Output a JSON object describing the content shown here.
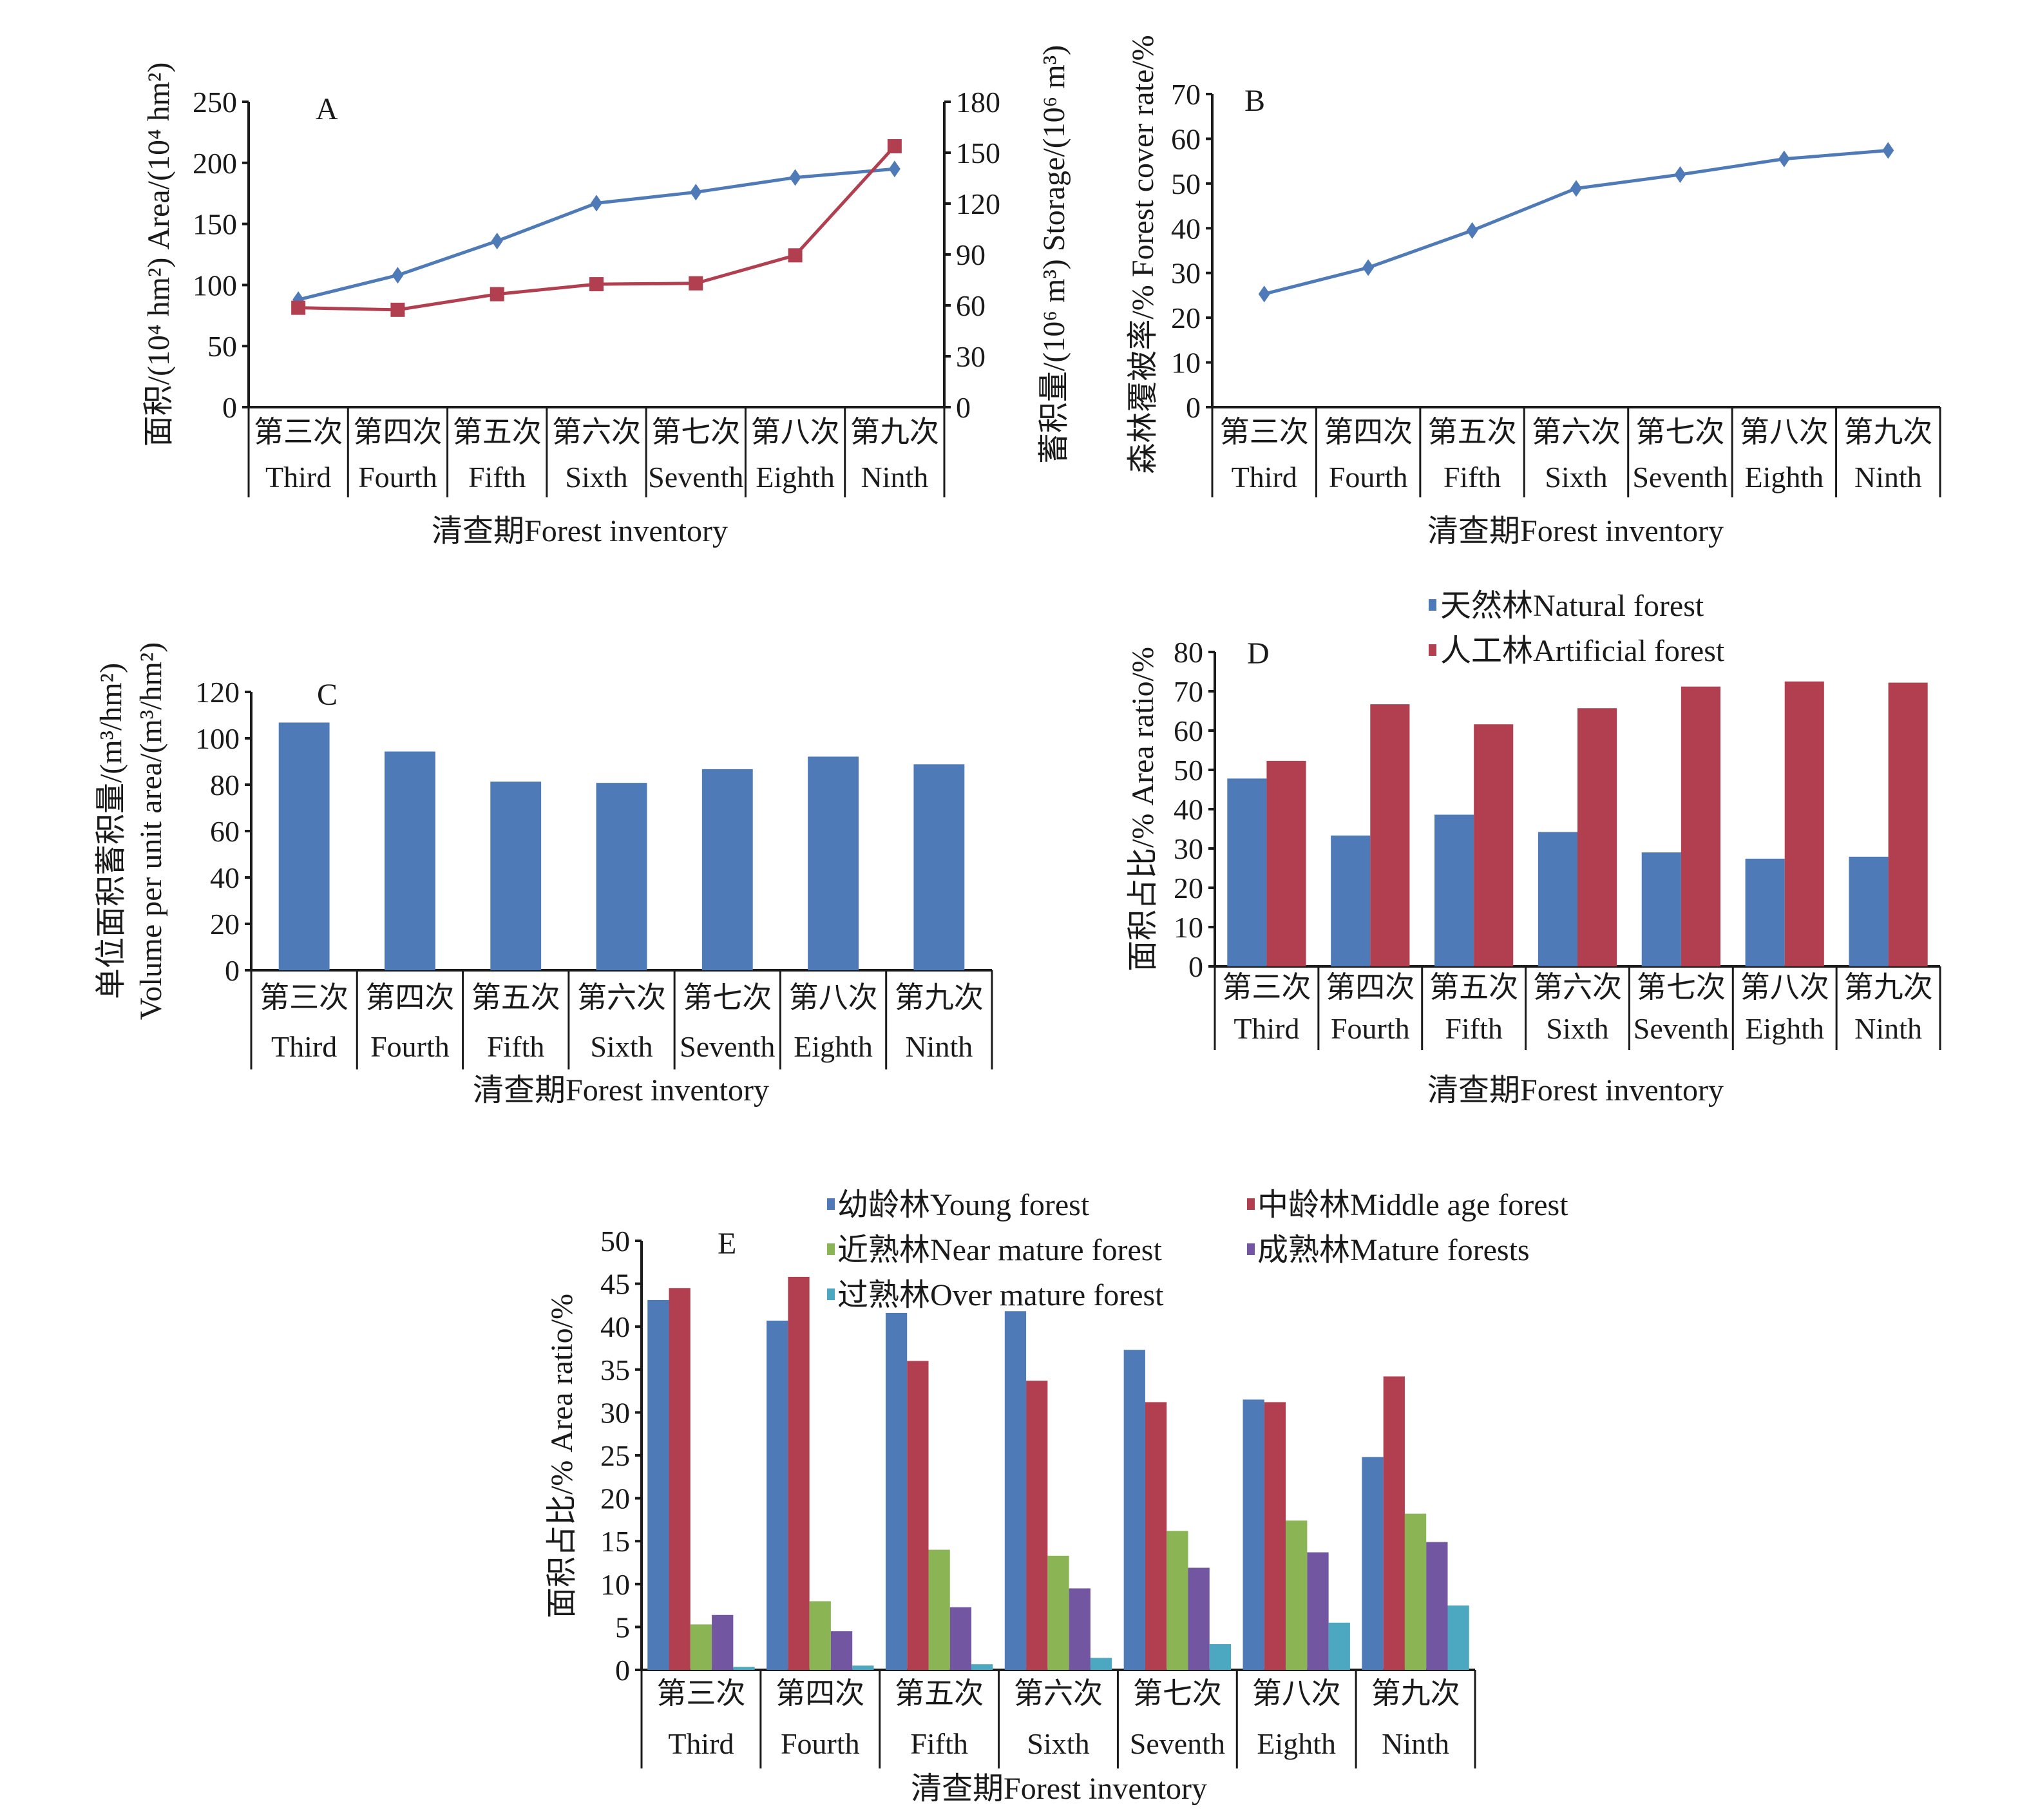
{
  "figure": {
    "categories_cn": [
      "第三次",
      "第四次",
      "第五次",
      "第六次",
      "第七次",
      "第八次",
      "第九次"
    ],
    "categories_en": [
      "Third",
      "Fourth",
      "Fifth",
      "Sixth",
      "Seventh",
      "Eighth",
      "Ninth"
    ],
    "colors": {
      "blue": "#4f7ab8",
      "red": "#b23f50",
      "green": "#8bb455",
      "purple": "#7356a2",
      "teal": "#4ba8c0"
    }
  },
  "chart_data": [
    {
      "id": "A",
      "panel_label": "A",
      "type": "line",
      "xlabel": "清查期Forest inventory",
      "ylabel": "面积/(10⁴ hm²) Area/(10⁴ hm²)",
      "y2label": "蓄积量/(10⁶ m³) Storage/(10⁶ m³)",
      "ylim": [
        0,
        250
      ],
      "yticks": [
        "0",
        "50",
        "100",
        "150",
        "200",
        "250"
      ],
      "y2lim": [
        0,
        180
      ],
      "y2ticks": [
        "0",
        "30",
        "60",
        "90",
        "120",
        "150",
        "180"
      ],
      "grid": false,
      "series": [
        {
          "name": "Area",
          "axis": "left",
          "marker": "diamond",
          "color": "#4f7ab8",
          "values": [
            88,
            108,
            136,
            167,
            176,
            188,
            195
          ]
        },
        {
          "name": "Storage",
          "axis": "right",
          "marker": "square",
          "color": "#b23f50",
          "values": [
            58.6,
            57.4,
            66.6,
            72.5,
            73.0,
            89.5,
            153.8
          ]
        }
      ]
    },
    {
      "id": "B",
      "panel_label": "B",
      "type": "line",
      "xlabel": "清查期Forest inventory",
      "ylabel": "森林覆被率/% Forest cover rate/%",
      "ylim": [
        0,
        70
      ],
      "yticks": [
        "0",
        "10",
        "20",
        "30",
        "40",
        "50",
        "60",
        "70"
      ],
      "grid": false,
      "series": [
        {
          "name": "Forest cover rate",
          "marker": "diamond",
          "color": "#4f7ab8",
          "values": [
            25.3,
            31.2,
            39.5,
            48.9,
            52.0,
            55.5,
            57.4
          ]
        }
      ]
    },
    {
      "id": "C",
      "panel_label": "C",
      "type": "bar",
      "xlabel": "清查期Forest inventory",
      "ylabel": "单位面积蓄积量/(m³/hm²)",
      "ylabel2": "Volume per unit area/(m³/hm²)",
      "ylim": [
        0,
        120
      ],
      "yticks": [
        "0",
        "20",
        "40",
        "60",
        "80",
        "100",
        "120"
      ],
      "grid": false,
      "series": [
        {
          "name": "Volume per unit area",
          "color": "#4f7ab8",
          "values": [
            106.8,
            94.3,
            81.3,
            80.8,
            86.7,
            92.1,
            88.8
          ]
        }
      ]
    },
    {
      "id": "D",
      "panel_label": "D",
      "type": "bar",
      "xlabel": "清查期Forest inventory",
      "ylabel": "面积占比/% Area ratio/%",
      "ylim": [
        0,
        80
      ],
      "yticks": [
        "0",
        "10",
        "20",
        "30",
        "40",
        "50",
        "60",
        "70",
        "80"
      ],
      "grid": false,
      "legend_position": "top",
      "series": [
        {
          "name": "天然林Natural forest",
          "color": "#4f7ab8",
          "values": [
            47.8,
            33.3,
            38.6,
            34.2,
            29.0,
            27.4,
            27.9
          ]
        },
        {
          "name": "人工林Artificial forest",
          "color": "#b23f50",
          "values": [
            52.3,
            66.7,
            61.6,
            65.7,
            71.2,
            72.5,
            72.2
          ]
        }
      ]
    },
    {
      "id": "E",
      "panel_label": "E",
      "type": "bar",
      "xlabel": "清查期Forest inventory",
      "ylabel": "面积占比/% Area ratio/%",
      "ylim": [
        0,
        50
      ],
      "yticks": [
        "0",
        "5",
        "10",
        "15",
        "20",
        "25",
        "30",
        "35",
        "40",
        "45",
        "50"
      ],
      "grid": false,
      "legend_position": "top",
      "series": [
        {
          "name": "幼龄林Young forest",
          "color": "#4f7ab8",
          "values": [
            43.1,
            40.7,
            41.6,
            41.8,
            37.3,
            31.5,
            24.8
          ]
        },
        {
          "name": "中龄林Middle age forest",
          "color": "#b23f50",
          "values": [
            44.5,
            45.8,
            36.0,
            33.7,
            31.2,
            31.2,
            34.2
          ]
        },
        {
          "name": "近熟林Near mature forest",
          "color": "#8bb455",
          "values": [
            5.3,
            8.0,
            14.0,
            13.3,
            16.2,
            17.4,
            18.2
          ]
        },
        {
          "name": "成熟林Mature forests",
          "color": "#7356a2",
          "values": [
            6.4,
            4.5,
            7.3,
            9.5,
            11.9,
            13.7,
            14.9
          ]
        },
        {
          "name": "过熟林Over mature forest",
          "color": "#4ba8c0",
          "values": [
            0.35,
            0.5,
            0.66,
            1.4,
            3.0,
            5.5,
            7.5
          ]
        }
      ]
    }
  ]
}
